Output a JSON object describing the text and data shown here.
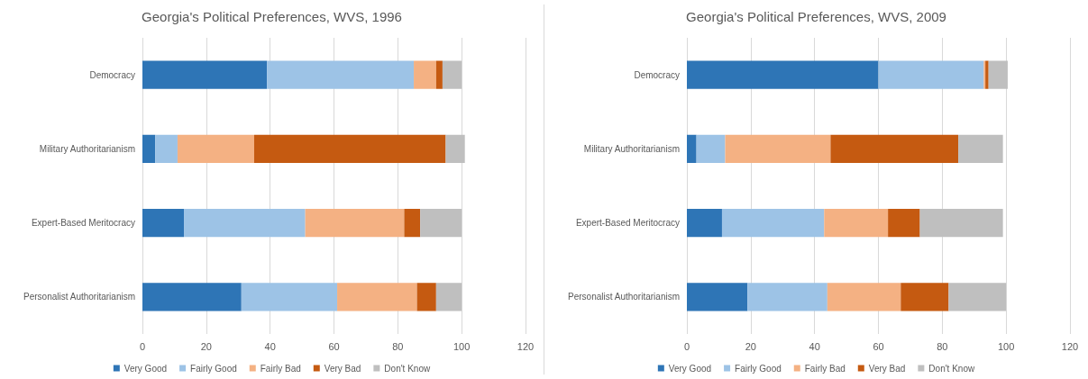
{
  "chart_data": [
    {
      "type": "bar",
      "title": "Georgia's Political Preferences, WVS, 1996",
      "orientation": "horizontal",
      "stacked": true,
      "categories": [
        "Democracy",
        "Military Authoritarianism",
        "Expert-Based Meritocracy",
        "Personalist Authoritarianism"
      ],
      "xlim": [
        0,
        120
      ],
      "xticks": [
        0,
        20,
        40,
        60,
        80,
        100,
        120
      ],
      "grid": "x",
      "legend": "bottom",
      "series": [
        {
          "name": "Very Good",
          "color": "#2e75b6",
          "values": [
            39,
            4,
            13,
            31
          ]
        },
        {
          "name": "Fairly Good",
          "color": "#9dc3e6",
          "values": [
            46,
            7,
            38,
            30
          ]
        },
        {
          "name": "Fairly Bad",
          "color": "#f4b183",
          "values": [
            7,
            24,
            31,
            25
          ]
        },
        {
          "name": "Very Bad",
          "color": "#c55a11",
          "values": [
            2,
            60,
            5,
            6
          ]
        },
        {
          "name": "Don't Know",
          "color": "#bfbfbf",
          "values": [
            6,
            6,
            13,
            8
          ]
        }
      ]
    },
    {
      "type": "bar",
      "title": "Georgia's Political Preferences, WVS, 2009",
      "orientation": "horizontal",
      "stacked": true,
      "categories": [
        "Democracy",
        "Military Authoritarianism",
        "Expert-Based Meritocracy",
        "Personalist Authoritarianism"
      ],
      "xlim": [
        0,
        120
      ],
      "xticks": [
        0,
        20,
        40,
        60,
        80,
        100,
        120
      ],
      "grid": "x",
      "legend": "bottom",
      "series": [
        {
          "name": "Very Good",
          "color": "#2e75b6",
          "values": [
            60,
            3,
            11,
            19
          ]
        },
        {
          "name": "Fairly Good",
          "color": "#9dc3e6",
          "values": [
            33,
            9,
            32,
            25
          ]
        },
        {
          "name": "Fairly Bad",
          "color": "#f4b183",
          "values": [
            0.5,
            33,
            20,
            23
          ]
        },
        {
          "name": "Very Bad",
          "color": "#c55a11",
          "values": [
            1,
            40,
            10,
            15
          ]
        },
        {
          "name": "Don't Know",
          "color": "#bfbfbf",
          "values": [
            6,
            14,
            26,
            18
          ]
        }
      ]
    }
  ]
}
